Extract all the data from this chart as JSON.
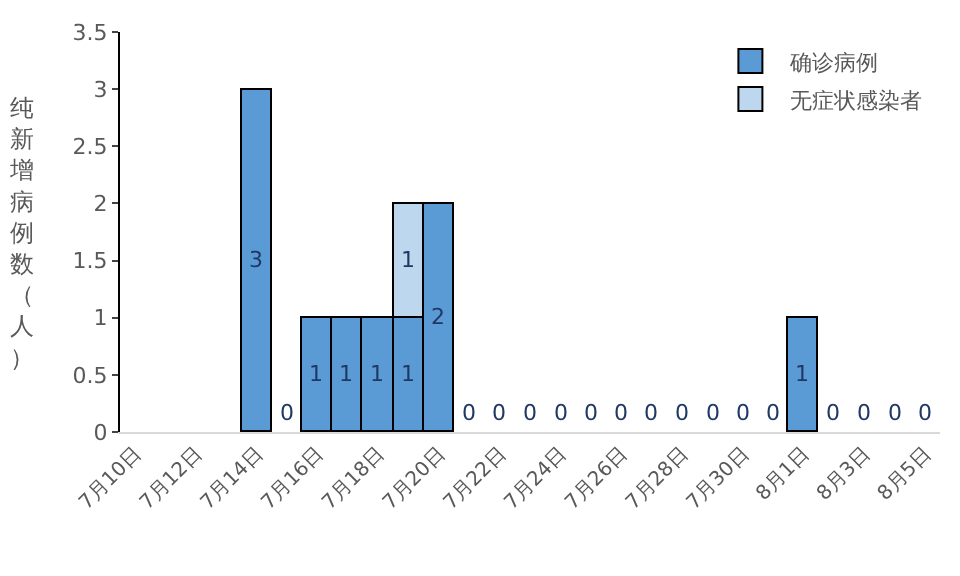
{
  "chart_data": {
    "type": "bar",
    "stacked": true,
    "ylabel": "纯新增病例数（人）",
    "categories": [
      "7月10日",
      null,
      "7月12日",
      null,
      "7月14日",
      null,
      "7月16日",
      null,
      "7月18日",
      null,
      "7月20日",
      null,
      "7月22日",
      null,
      "7月24日",
      null,
      "7月26日",
      null,
      "7月28日",
      null,
      "7月30日",
      null,
      "8月1日",
      null,
      "8月3日",
      null,
      "8月5日"
    ],
    "series": [
      {
        "name": "确诊病例",
        "color": "#5b9bd5",
        "values": [
          null,
          null,
          null,
          null,
          3,
          0,
          1,
          1,
          1,
          1,
          2,
          0,
          0,
          0,
          0,
          0,
          0,
          0,
          0,
          0,
          0,
          0,
          1,
          0,
          0,
          0,
          0
        ]
      },
      {
        "name": "无症状感染者",
        "color": "#bdd7ee",
        "values": [
          null,
          null,
          null,
          null,
          null,
          null,
          null,
          null,
          null,
          1,
          null,
          null,
          null,
          null,
          null,
          null,
          null,
          null,
          null,
          null,
          null,
          null,
          null,
          null,
          null,
          null,
          null
        ]
      }
    ],
    "ylim": [
      0,
      3.5
    ],
    "yticks": [
      0,
      0.5,
      1,
      1.5,
      2,
      2.5,
      3,
      3.5
    ],
    "data_labels": true,
    "legend": "top right"
  }
}
